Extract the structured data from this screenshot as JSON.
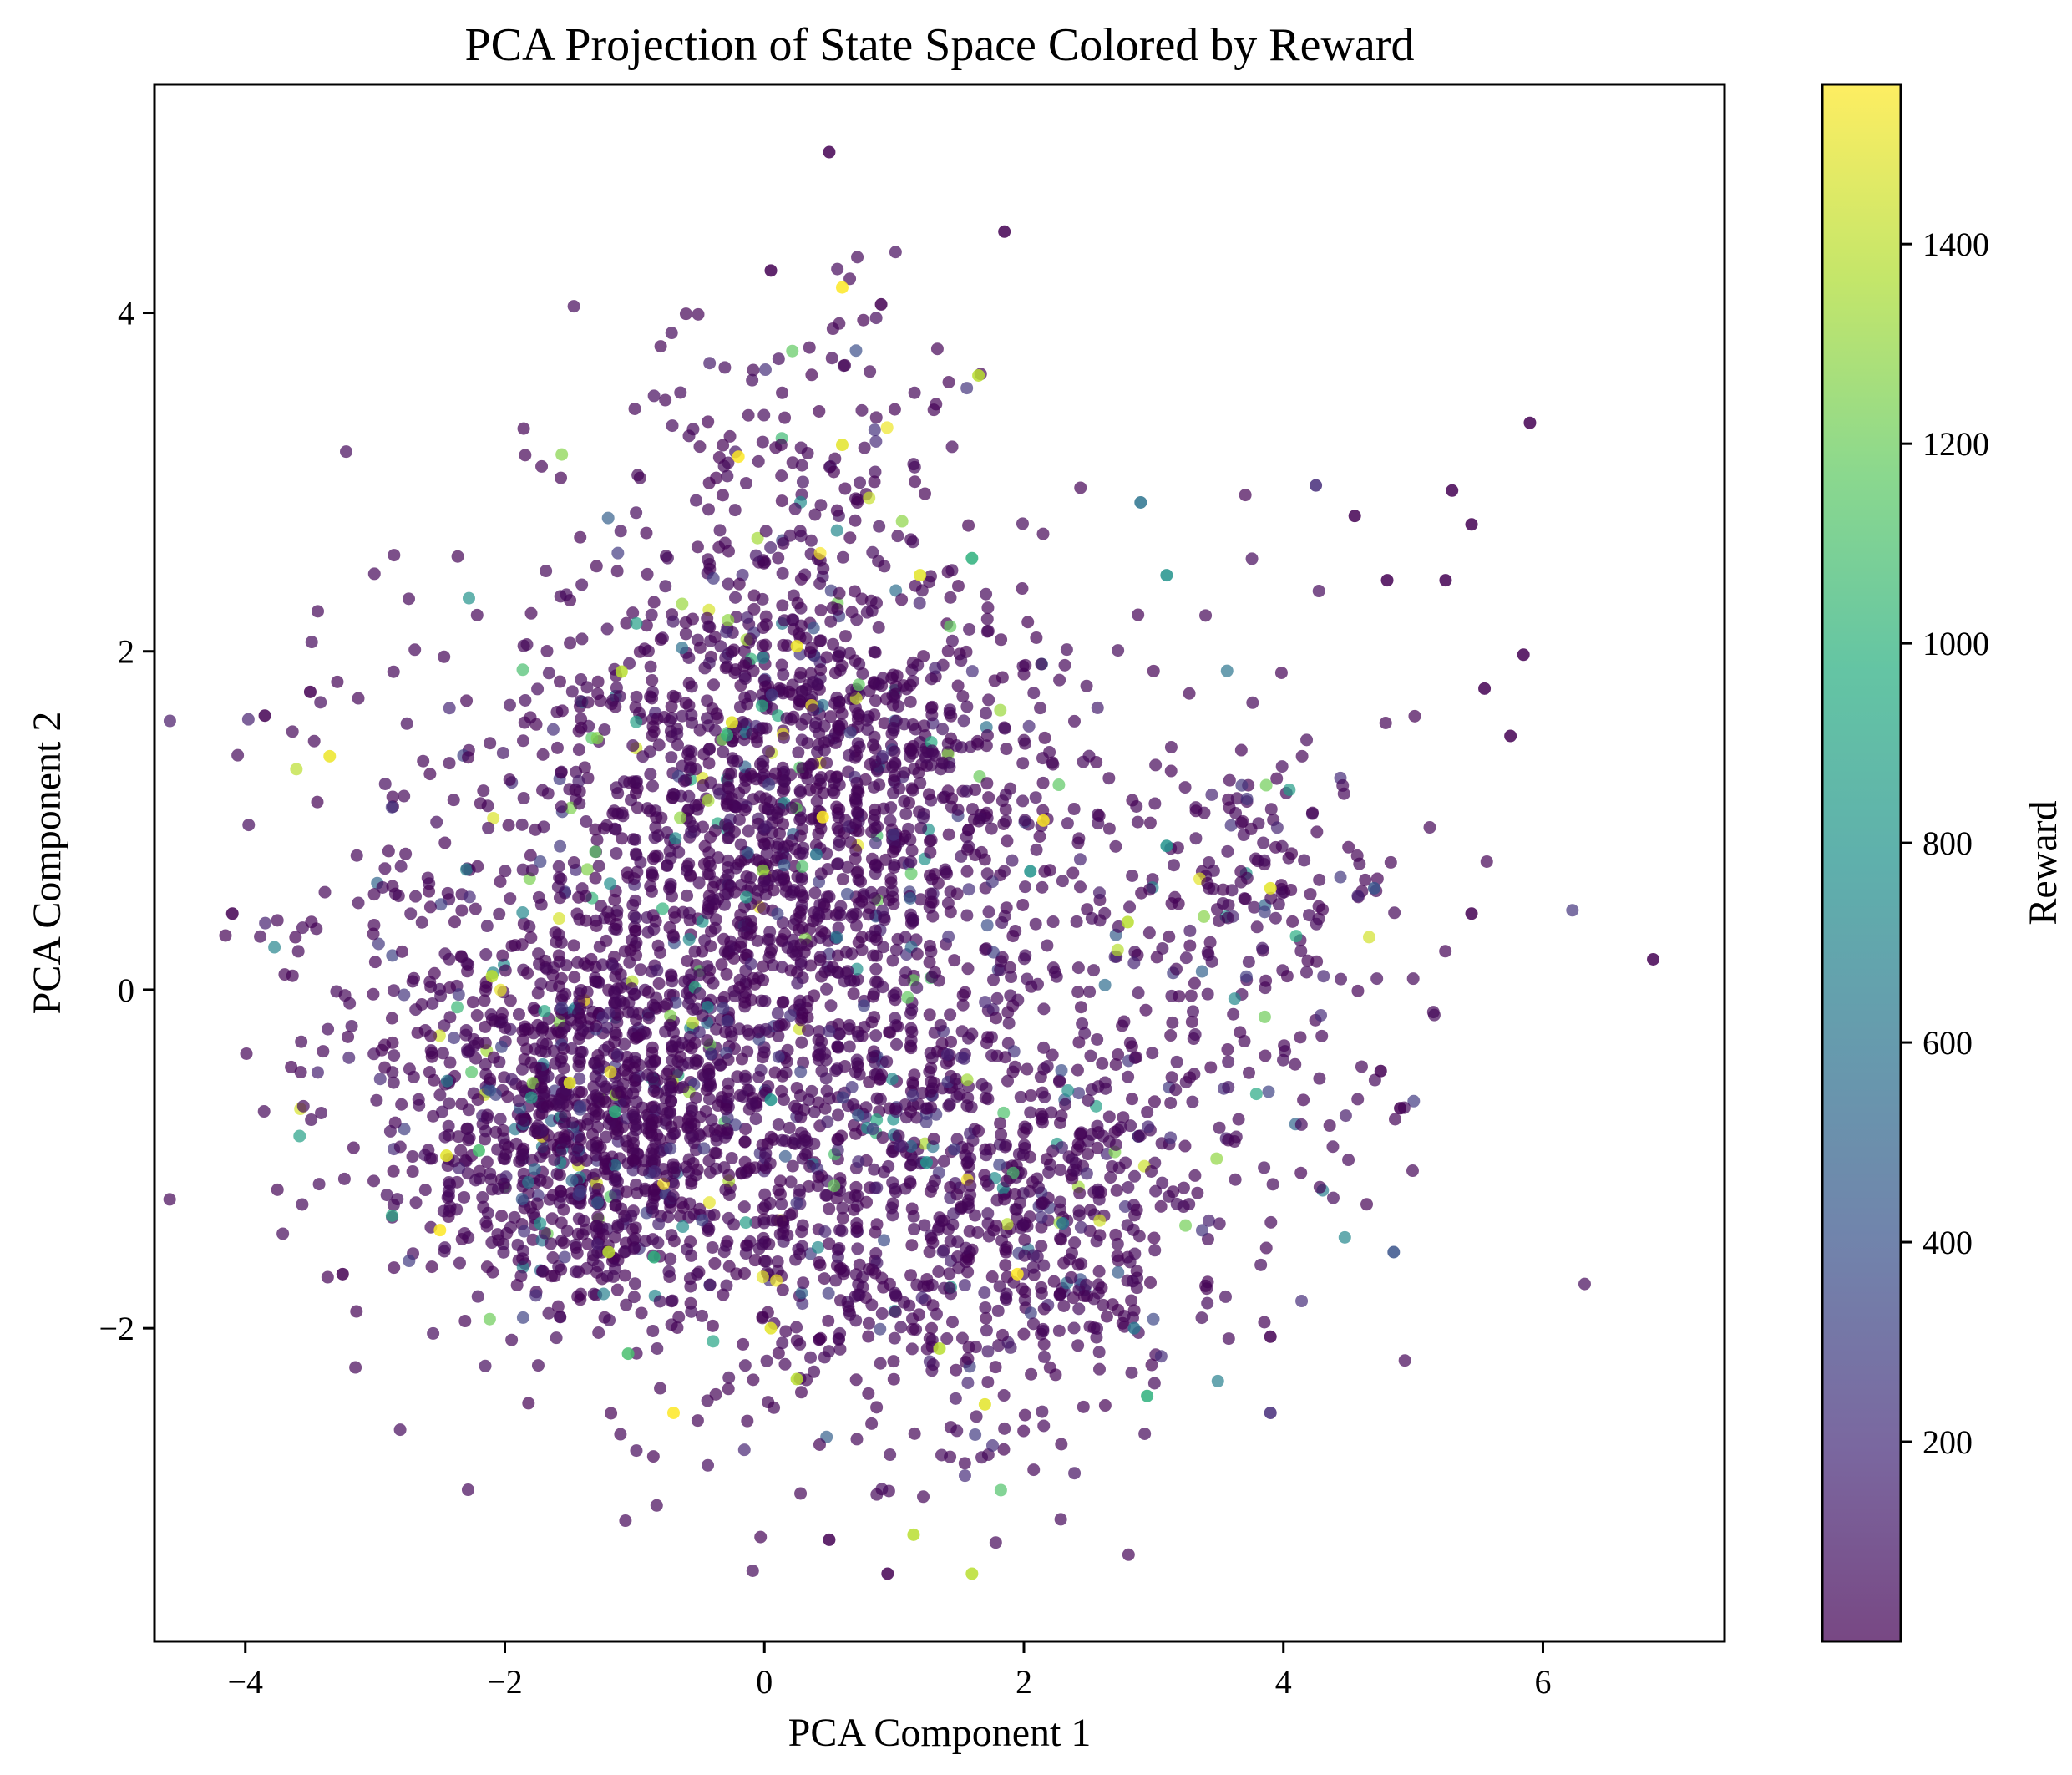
{
  "chart_data": {
    "type": "scatter",
    "title": "PCA Projection of State Space Colored by Reward",
    "xlabel": "PCA Component 1",
    "ylabel": "PCA Component 2",
    "xlim": [
      -4.7,
      7.4
    ],
    "ylim": [
      -3.85,
      5.35
    ],
    "xticks": [
      -4,
      -2,
      0,
      2,
      4,
      6
    ],
    "yticks": [
      -2,
      0,
      2,
      4
    ],
    "xtick_labels": [
      "−4",
      "−2",
      "0",
      "2",
      "4",
      "6"
    ],
    "ytick_labels": [
      "−2",
      "0",
      "2",
      "4"
    ],
    "grid": false,
    "colormap": "viridis",
    "point_alpha": 0.7,
    "colorbar": {
      "label": "Reward",
      "range": [
        0,
        1560
      ],
      "ticks": [
        200,
        400,
        600,
        800,
        1000,
        1200,
        1400
      ],
      "tick_labels": [
        "200",
        "400",
        "600",
        "800",
        "1000",
        "1200",
        "1400"
      ]
    },
    "highlight_points": [
      {
        "x": 0.5,
        "y": 4.95,
        "reward": 0
      },
      {
        "x": 0.6,
        "y": 4.15,
        "reward": 1560
      },
      {
        "x": 0.05,
        "y": 4.25,
        "reward": 0
      },
      {
        "x": 1.85,
        "y": 4.48,
        "reward": 0
      },
      {
        "x": 0.9,
        "y": 4.05,
        "reward": 0
      },
      {
        "x": 1.65,
        "y": 3.63,
        "reward": 1400
      },
      {
        "x": 5.9,
        "y": 3.35,
        "reward": 0
      },
      {
        "x": 6.85,
        "y": 0.18,
        "reward": 0
      },
      {
        "x": 2.9,
        "y": 2.88,
        "reward": 600
      },
      {
        "x": 1.6,
        "y": 2.55,
        "reward": 1000
      },
      {
        "x": 3.1,
        "y": 2.45,
        "reward": 800
      },
      {
        "x": 4.55,
        "y": 2.8,
        "reward": 0
      },
      {
        "x": 4.25,
        "y": 2.98,
        "reward": 200
      },
      {
        "x": 5.3,
        "y": 2.95,
        "reward": 0
      },
      {
        "x": 5.45,
        "y": 2.75,
        "reward": 0
      },
      {
        "x": 5.25,
        "y": 2.42,
        "reward": 0
      },
      {
        "x": 4.8,
        "y": 2.42,
        "reward": 0
      },
      {
        "x": 5.85,
        "y": 1.98,
        "reward": 0
      },
      {
        "x": 5.55,
        "y": 1.78,
        "reward": 0
      },
      {
        "x": 5.75,
        "y": 1.5,
        "reward": 0
      },
      {
        "x": 5.45,
        "y": 0.45,
        "reward": 0
      },
      {
        "x": 4.7,
        "y": 0.6,
        "reward": 400
      },
      {
        "x": -4.1,
        "y": 0.45,
        "reward": 0
      },
      {
        "x": -3.85,
        "y": 1.62,
        "reward": 0
      },
      {
        "x": -3.5,
        "y": 1.76,
        "reward": 0
      },
      {
        "x": -3.35,
        "y": 1.38,
        "reward": 1520
      },
      {
        "x": -3.25,
        "y": -1.68,
        "reward": 0
      },
      {
        "x": 0.95,
        "y": -3.45,
        "reward": 0
      },
      {
        "x": 1.6,
        "y": -3.45,
        "reward": 1400
      },
      {
        "x": 1.15,
        "y": -3.22,
        "reward": 1400
      },
      {
        "x": 0.5,
        "y": -3.25,
        "reward": 0
      },
      {
        "x": 2.95,
        "y": -2.4,
        "reward": 1000
      },
      {
        "x": 3.9,
        "y": -2.5,
        "reward": 200
      },
      {
        "x": 3.9,
        "y": -2.05,
        "reward": 0
      },
      {
        "x": 4.85,
        "y": -1.55,
        "reward": 400
      },
      {
        "x": 4.9,
        "y": -0.7,
        "reward": 0
      },
      {
        "x": 4.75,
        "y": -0.48,
        "reward": 0
      },
      {
        "x": 0.05,
        "y": -2.0,
        "reward": 1500
      },
      {
        "x": -0.7,
        "y": -2.5,
        "reward": 1560
      },
      {
        "x": 1.7,
        "y": -2.45,
        "reward": 1500
      },
      {
        "x": 1.95,
        "y": -1.68,
        "reward": 1560
      },
      {
        "x": -1.05,
        "y": -2.15,
        "reward": 1100
      },
      {
        "x": -2.2,
        "y": -0.95,
        "reward": 1100
      },
      {
        "x": -1.15,
        "y": -0.72,
        "reward": 1000
      },
      {
        "x": -0.85,
        "y": -1.58,
        "reward": 1000
      },
      {
        "x": 0.05,
        "y": -0.65,
        "reward": 800
      },
      {
        "x": 0.4,
        "y": 0.8,
        "reward": 600
      },
      {
        "x": 2.05,
        "y": 0.7,
        "reward": 800
      },
      {
        "x": 3.1,
        "y": 0.85,
        "reward": 800
      },
      {
        "x": 1.25,
        "y": -1.02,
        "reward": 800
      },
      {
        "x": 2.3,
        "y": -1.38,
        "reward": 600
      },
      {
        "x": 2.85,
        "y": -2.0,
        "reward": 600
      },
      {
        "x": -2.1,
        "y": 0.08,
        "reward": 1400
      },
      {
        "x": -2.45,
        "y": -0.98,
        "reward": 1500
      },
      {
        "x": -2.5,
        "y": -1.42,
        "reward": 1560
      },
      {
        "x": -1.1,
        "y": 1.88,
        "reward": 1400
      },
      {
        "x": 0.25,
        "y": 2.03,
        "reward": 1520
      },
      {
        "x": -0.25,
        "y": 1.58,
        "reward": 1500
      },
      {
        "x": 0.45,
        "y": 1.02,
        "reward": 1560
      },
      {
        "x": 1.2,
        "y": 2.45,
        "reward": 1500
      },
      {
        "x": 2.8,
        "y": 0.4,
        "reward": 1400
      },
      {
        "x": 3.9,
        "y": 0.6,
        "reward": 1500
      },
      {
        "x": 2.15,
        "y": 1.0,
        "reward": 1560
      },
      {
        "x": -1.5,
        "y": -0.55,
        "reward": 1500
      },
      {
        "x": -1.2,
        "y": -1.55,
        "reward": 1400
      },
      {
        "x": 0.25,
        "y": -2.3,
        "reward": 1400
      },
      {
        "x": 1.35,
        "y": -2.12,
        "reward": 1400
      },
      {
        "x": -0.2,
        "y": 3.15,
        "reward": 1560
      },
      {
        "x": 0.6,
        "y": 3.22,
        "reward": 1500
      }
    ]
  }
}
